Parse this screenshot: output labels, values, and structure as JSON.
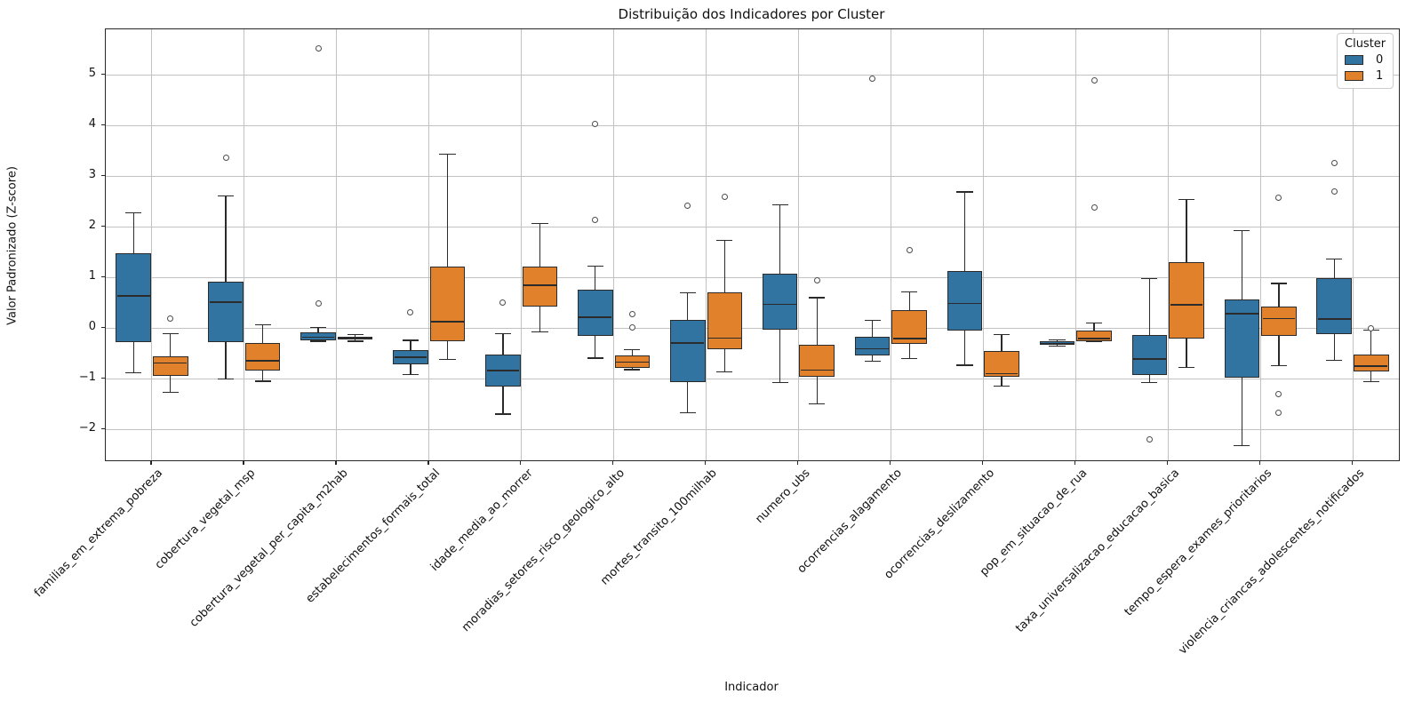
{
  "title": "Distribuição dos Indicadores por Cluster",
  "x_label": "Indicador",
  "y_label": "Valor Padronizado (Z-score)",
  "legend": {
    "title": "Cluster",
    "entries": [
      {
        "label": "0",
        "color": "#3274A1"
      },
      {
        "label": "1",
        "color": "#E1812C"
      }
    ]
  },
  "chart_data": {
    "type": "boxplot",
    "title": "Distribuição dos Indicadores por Cluster",
    "xlabel": "Indicador",
    "ylabel": "Valor Padronizado (Z-score)",
    "grid": true,
    "legend_position": "upper right",
    "x_tick_rotation": 45,
    "ylim": [
      -2.61,
      5.9
    ],
    "y_ticks": [
      5,
      4,
      3,
      2,
      1,
      0,
      -1,
      -2
    ],
    "categories": [
      "familias_em_extrema_pobreza",
      "cobertura_vegetal_msp",
      "cobertura_vegetal_per_capita_m2hab",
      "estabelecimentos_formais_total",
      "idade_media_ao_morrer",
      "moradias_setores_risco_geologico_alto",
      "mortes_transito_100milhab",
      "numero_ubs",
      "ocorrencias_alagamento",
      "ocorrencias_deslizamento",
      "pop_em_situacao_de_rua",
      "taxa_universalizacao_educacao_basica",
      "tempo_espera_exames_prioritarios",
      "violencia_criancas_adolescentes_notificados"
    ],
    "series": [
      {
        "name": "0",
        "color": "#3274A1",
        "boxes": [
          {
            "whislo": -0.88,
            "q1": -0.27,
            "med": 0.64,
            "q3": 1.48,
            "whishi": 2.28,
            "outliers": []
          },
          {
            "whislo": -1.0,
            "q1": -0.28,
            "med": 0.51,
            "q3": 0.92,
            "whishi": 2.61,
            "outliers": [
              3.37
            ]
          },
          {
            "whislo": -0.26,
            "q1": -0.25,
            "med": -0.18,
            "q3": -0.09,
            "whishi": 0.01,
            "outliers": [
              0.48,
              5.52
            ]
          },
          {
            "whislo": -0.92,
            "q1": -0.72,
            "med": -0.57,
            "q3": -0.43,
            "whishi": -0.24,
            "outliers": [
              0.31
            ]
          },
          {
            "whislo": -1.7,
            "q1": -1.15,
            "med": -0.84,
            "q3": -0.52,
            "whishi": -0.11,
            "outliers": [
              0.5
            ]
          },
          {
            "whislo": -0.59,
            "q1": -0.15,
            "med": 0.22,
            "q3": 0.76,
            "whishi": 1.23,
            "outliers": [
              2.13,
              4.04
            ]
          },
          {
            "whislo": -1.67,
            "q1": -1.06,
            "med": -0.29,
            "q3": 0.17,
            "whishi": 0.7,
            "outliers": [
              2.42
            ]
          },
          {
            "whislo": -1.08,
            "q1": -0.03,
            "med": 0.47,
            "q3": 1.08,
            "whishi": 2.44,
            "outliers": []
          },
          {
            "whislo": -0.65,
            "q1": -0.54,
            "med": -0.41,
            "q3": -0.17,
            "whishi": 0.15,
            "outliers": [
              4.93
            ]
          },
          {
            "whislo": -0.73,
            "q1": -0.04,
            "med": 0.49,
            "q3": 1.12,
            "whishi": 2.69,
            "outliers": []
          },
          {
            "whislo": -0.36,
            "q1": -0.33,
            "med": -0.3,
            "q3": -0.26,
            "whishi": -0.23,
            "outliers": []
          },
          {
            "whislo": -1.08,
            "q1": -0.93,
            "med": -0.61,
            "q3": -0.14,
            "whishi": 0.98,
            "outliers": [
              -2.19
            ]
          },
          {
            "whislo": -2.32,
            "q1": -0.97,
            "med": 0.29,
            "q3": 0.56,
            "whishi": 1.92,
            "outliers": []
          },
          {
            "whislo": -0.64,
            "q1": -0.12,
            "med": 0.18,
            "q3": 0.99,
            "whishi": 1.36,
            "outliers": [
              2.69,
              3.26
            ]
          }
        ]
      },
      {
        "name": "1",
        "color": "#E1812C",
        "boxes": [
          {
            "whislo": -1.27,
            "q1": -0.95,
            "med": -0.69,
            "q3": -0.56,
            "whishi": -0.11,
            "outliers": [
              0.19
            ]
          },
          {
            "whislo": -1.05,
            "q1": -0.84,
            "med": -0.64,
            "q3": -0.3,
            "whishi": 0.07,
            "outliers": []
          },
          {
            "whislo": -0.26,
            "q1": -0.23,
            "med": -0.2,
            "q3": -0.17,
            "whishi": -0.13,
            "outliers": []
          },
          {
            "whislo": -0.62,
            "q1": -0.26,
            "med": 0.13,
            "q3": 1.22,
            "whishi": 3.44,
            "outliers": []
          },
          {
            "whislo": -0.07,
            "q1": 0.43,
            "med": 0.85,
            "q3": 1.21,
            "whishi": 2.07,
            "outliers": []
          },
          {
            "whislo": -0.82,
            "q1": -0.78,
            "med": -0.67,
            "q3": -0.54,
            "whishi": -0.43,
            "outliers": [
              0.28,
              0.01
            ]
          },
          {
            "whislo": -0.86,
            "q1": -0.41,
            "med": -0.2,
            "q3": 0.7,
            "whishi": 1.73,
            "outliers": [
              2.6
            ]
          },
          {
            "whislo": -1.49,
            "q1": -0.96,
            "med": -0.83,
            "q3": -0.33,
            "whishi": 0.6,
            "outliers": [
              0.95
            ]
          },
          {
            "whislo": -0.6,
            "q1": -0.32,
            "med": -0.21,
            "q3": 0.35,
            "whishi": 0.72,
            "outliers": [
              1.54
            ]
          },
          {
            "whislo": -1.15,
            "q1": -0.96,
            "med": -0.9,
            "q3": -0.46,
            "whishi": -0.13,
            "outliers": []
          },
          {
            "whislo": -0.27,
            "q1": -0.26,
            "med": -0.21,
            "q3": -0.04,
            "whishi": 0.1,
            "outliers": [
              2.38,
              4.89
            ]
          },
          {
            "whislo": -0.78,
            "q1": -0.21,
            "med": 0.46,
            "q3": 1.3,
            "whishi": 2.54,
            "outliers": []
          },
          {
            "whislo": -0.74,
            "q1": -0.16,
            "med": 0.19,
            "q3": 0.43,
            "whishi": 0.88,
            "outliers": [
              2.58,
              -1.3,
              -1.67
            ]
          },
          {
            "whislo": -1.06,
            "q1": -0.86,
            "med": -0.75,
            "q3": -0.52,
            "whishi": -0.04,
            "outliers": [
              0.0
            ]
          }
        ]
      }
    ]
  }
}
